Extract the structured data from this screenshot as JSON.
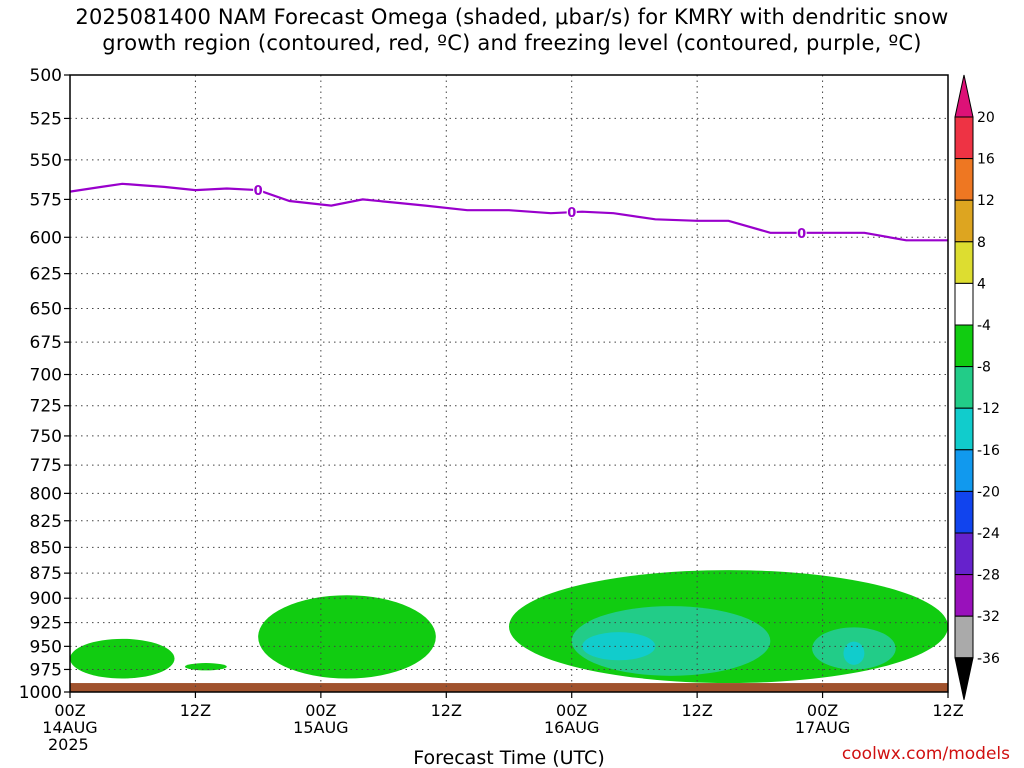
{
  "title_lines": [
    "2025081400 NAM Forecast Omega (shaded, μbar/s) for KMRY with dendritic snow",
    "growth region (contoured, red, ºC) and freezing level (contoured, purple, ºC)"
  ],
  "credit": "coolwx.com/models",
  "chart_data": {
    "type": "heatmap",
    "title": "2025081400 NAM Forecast Omega (shaded, μbar/s) for KMRY with dendritic snow growth region (contoured, red, ºC) and freezing level (contoured, purple, ºC)",
    "xlabel": "Forecast Time (UTC)",
    "ylabel": "",
    "x_range_hours": [
      0,
      84
    ],
    "x_ticks": [
      {
        "hour": 0,
        "lines": [
          "00Z",
          "14AUG",
          "2025"
        ]
      },
      {
        "hour": 12,
        "lines": [
          "12Z"
        ]
      },
      {
        "hour": 24,
        "lines": [
          "00Z",
          "15AUG"
        ]
      },
      {
        "hour": 36,
        "lines": [
          "12Z"
        ]
      },
      {
        "hour": 48,
        "lines": [
          "00Z",
          "16AUG"
        ]
      },
      {
        "hour": 60,
        "lines": [
          "12Z"
        ]
      },
      {
        "hour": 72,
        "lines": [
          "00Z",
          "17AUG"
        ]
      },
      {
        "hour": 84,
        "lines": [
          "12Z"
        ]
      }
    ],
    "y_scale": "log-pressure, reversed",
    "y_range_hPa": [
      1000,
      500
    ],
    "y_ticks": [
      500,
      525,
      550,
      575,
      600,
      625,
      650,
      675,
      700,
      725,
      750,
      775,
      800,
      825,
      850,
      875,
      900,
      925,
      950,
      975,
      1000
    ],
    "grid": true,
    "colorbar": {
      "labels": [
        "20",
        "16",
        "12",
        "8",
        "4",
        "-4",
        "-8",
        "-12",
        "-16",
        "-20",
        "-24",
        "-28",
        "-32",
        "-36"
      ],
      "colors": [
        "#ee3344",
        "#ee7722",
        "#dda520",
        "#dddd30",
        "#ffffff",
        "#11cc11",
        "#22cc88",
        "#11cccc",
        "#1199ee",
        "#1144ee",
        "#6622cc",
        "#9911bb",
        "#aaaaaa"
      ],
      "top_arrow_color": "#dd1177",
      "bottom_arrow_color": "#000000"
    },
    "freezing_level": {
      "color": "#9900cc",
      "label": "0",
      "label_hours": [
        18,
        48,
        70
      ],
      "points": [
        [
          0,
          570
        ],
        [
          3,
          567
        ],
        [
          5,
          565
        ],
        [
          7,
          566
        ],
        [
          9,
          567
        ],
        [
          12,
          569
        ],
        [
          15,
          568
        ],
        [
          18,
          569
        ],
        [
          21,
          576
        ],
        [
          25,
          579
        ],
        [
          28,
          575
        ],
        [
          31,
          577
        ],
        [
          34,
          579
        ],
        [
          38,
          582
        ],
        [
          42,
          582
        ],
        [
          46,
          584
        ],
        [
          49,
          583
        ],
        [
          52,
          584
        ],
        [
          56,
          588
        ],
        [
          60,
          589
        ],
        [
          63,
          589
        ],
        [
          67,
          597
        ],
        [
          70,
          597
        ],
        [
          76,
          597
        ],
        [
          80,
          602
        ],
        [
          84,
          602
        ]
      ]
    },
    "shaded_regions": [
      {
        "value": "-4 to -8",
        "color": "#11cc11",
        "hours": [
          0,
          10
        ],
        "pressure": [
          942,
          985
        ]
      },
      {
        "value": "-4 to -8",
        "color": "#11cc11",
        "hours": [
          11,
          15
        ],
        "pressure": [
          968,
          976
        ]
      },
      {
        "value": "-4 to -8",
        "color": "#11cc11",
        "hours": [
          18,
          35
        ],
        "pressure": [
          897,
          985
        ]
      },
      {
        "value": "-4 to -8",
        "color": "#11cc11",
        "hours": [
          42,
          84
        ],
        "pressure": [
          872,
          990
        ]
      },
      {
        "value": "-8 to -12",
        "color": "#22cc88",
        "hours": [
          48,
          67
        ],
        "pressure": [
          908,
          982
        ]
      },
      {
        "value": "-8 to -12",
        "color": "#22cc88",
        "hours": [
          71,
          79
        ],
        "pressure": [
          930,
          975
        ]
      },
      {
        "value": "-12 to -16",
        "color": "#11cccc",
        "hours": [
          49,
          56
        ],
        "pressure": [
          935,
          965
        ]
      },
      {
        "value": "-12 to -16",
        "color": "#11cccc",
        "hours": [
          74,
          76
        ],
        "pressure": [
          945,
          970
        ]
      }
    ],
    "terrain_color": "#a0522d"
  }
}
